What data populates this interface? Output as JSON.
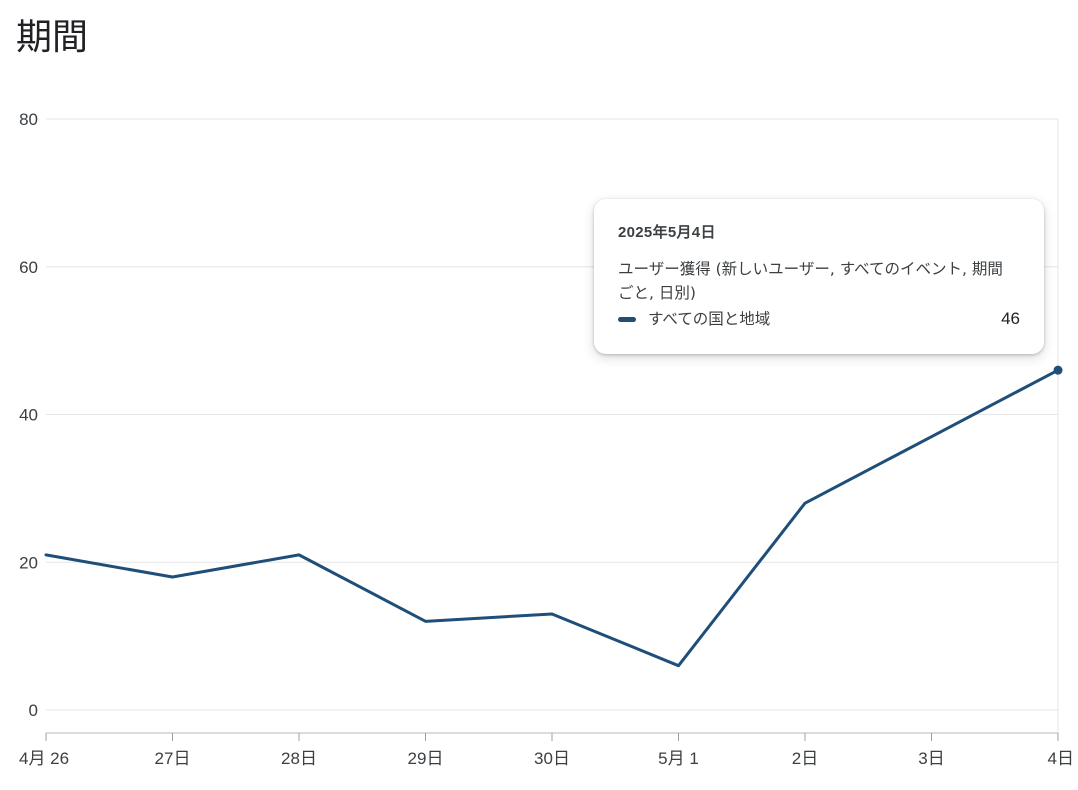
{
  "page": {
    "title": "期間"
  },
  "chart_data": {
    "type": "line",
    "categories": [
      "4月 26",
      "27日",
      "28日",
      "29日",
      "30日",
      "5月 1",
      "2日",
      "3日",
      "4日"
    ],
    "series": [
      {
        "name": "すべての国と地域",
        "values": [
          21,
          18,
          21,
          12,
          13,
          6,
          28,
          37,
          46
        ],
        "color": "#1f4e79"
      }
    ],
    "y_ticks": [
      "0",
      "20",
      "40",
      "60",
      "80"
    ],
    "ylim": [
      0,
      80
    ],
    "grid": true,
    "highlight_index": 8
  },
  "tooltip": {
    "date": "2025年5月4日",
    "metric": "ユーザー獲得 (新しいユーザー, すべてのイベント, 期間ごと, 日別)",
    "series_label": "すべての国と地域",
    "value": "46"
  },
  "colors": {
    "line": "#1f4e79",
    "grid": "#e6e6e6",
    "axis": "#dadce0"
  }
}
